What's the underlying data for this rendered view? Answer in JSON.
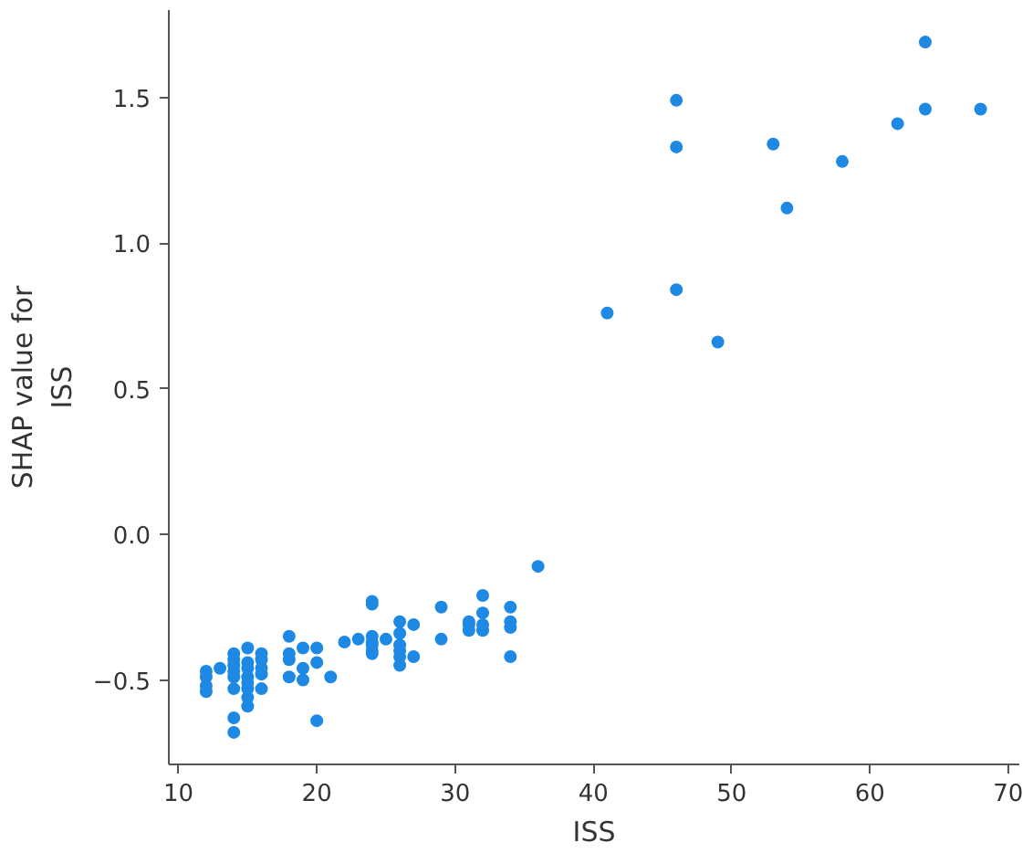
{
  "chart_data": {
    "type": "scatter",
    "xlabel": "ISS",
    "ylabel": "SHAP value for ISS",
    "xlim": [
      9.3,
      70.8
    ],
    "ylim": [
      -0.79,
      1.8
    ],
    "xticks": [
      10,
      20,
      30,
      40,
      50,
      60,
      70
    ],
    "yticks": [
      {
        "value": -0.5,
        "label": "−0.5"
      },
      {
        "value": 0,
        "label": "0.0"
      },
      {
        "value": 0.5,
        "label": "0.5"
      },
      {
        "value": 1,
        "label": "1.0"
      },
      {
        "value": 1.5,
        "label": "1.5"
      }
    ],
    "grid": false,
    "marker": "circle",
    "series": [
      {
        "color": "#1e88e5",
        "x": [
          12,
          12,
          12,
          12,
          13,
          14,
          14,
          14,
          14,
          14,
          14,
          14,
          14,
          15,
          15,
          15,
          15,
          15,
          15,
          15,
          15,
          16,
          16,
          16,
          16,
          16,
          18,
          18,
          18,
          18,
          19,
          19,
          19,
          20,
          20,
          20,
          21,
          22,
          23,
          24,
          24,
          24,
          24,
          24,
          24,
          24,
          25,
          26,
          26,
          26,
          26,
          26,
          26,
          27,
          27,
          29,
          29,
          31,
          31,
          31,
          32,
          32,
          32,
          32,
          34,
          34,
          34,
          34,
          36,
          41,
          46,
          46,
          46,
          49,
          53,
          54,
          58,
          62,
          64,
          64,
          68
        ],
        "values": [
          -0.47,
          -0.49,
          -0.52,
          -0.54,
          -0.46,
          -0.41,
          -0.43,
          -0.45,
          -0.47,
          -0.49,
          -0.53,
          -0.63,
          -0.68,
          -0.39,
          -0.44,
          -0.46,
          -0.49,
          -0.51,
          -0.53,
          -0.56,
          -0.59,
          -0.41,
          -0.43,
          -0.46,
          -0.48,
          -0.53,
          -0.35,
          -0.41,
          -0.43,
          -0.49,
          -0.39,
          -0.46,
          -0.5,
          -0.39,
          -0.44,
          -0.64,
          -0.49,
          -0.37,
          -0.36,
          -0.23,
          -0.24,
          -0.35,
          -0.37,
          -0.38,
          -0.4,
          -0.41,
          -0.36,
          -0.3,
          -0.34,
          -0.38,
          -0.4,
          -0.42,
          -0.45,
          -0.31,
          -0.42,
          -0.25,
          -0.36,
          -0.3,
          -0.31,
          -0.33,
          -0.21,
          -0.27,
          -0.31,
          -0.33,
          -0.25,
          -0.3,
          -0.32,
          -0.42,
          -0.11,
          0.76,
          1.49,
          1.33,
          0.84,
          0.66,
          1.34,
          1.12,
          1.28,
          1.41,
          1.69,
          1.46,
          1.46
        ]
      }
    ]
  }
}
